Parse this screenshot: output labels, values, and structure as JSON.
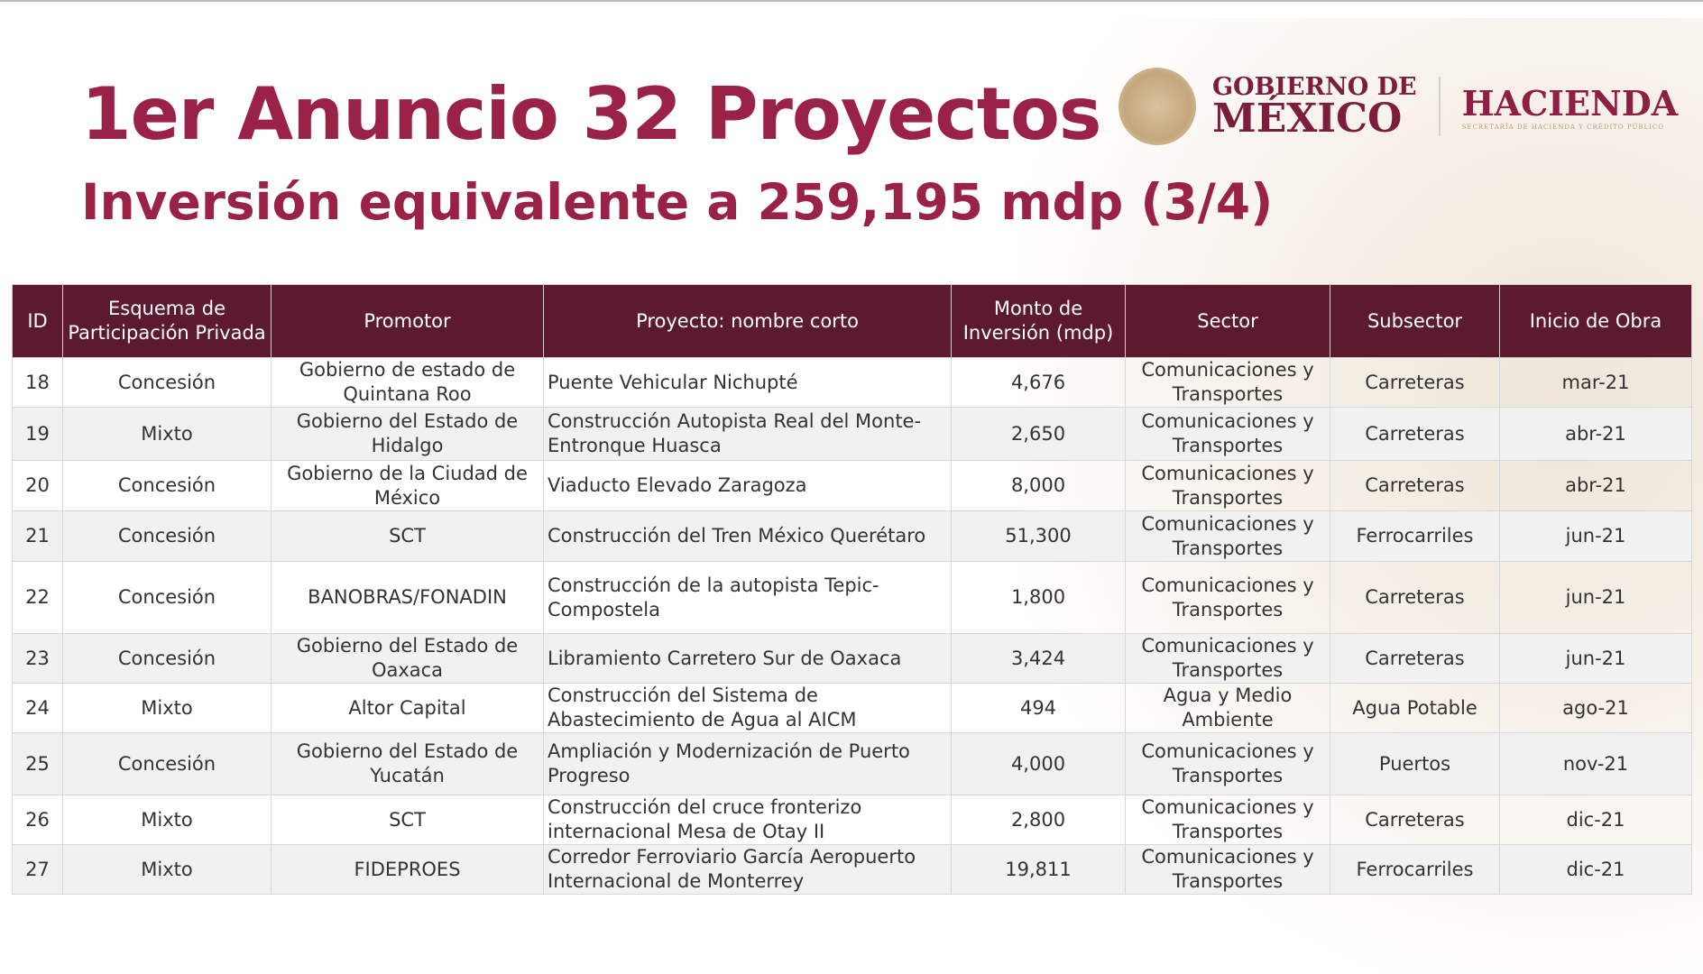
{
  "title": "1er Anuncio 32 Proyectos",
  "subtitle": "Inversión equivalente a 259,195 mdp (3/4)",
  "logo": {
    "gobierno_line1": "GOBIERNO DE",
    "gobierno_line2": "MÉXICO",
    "hacienda": "HACIENDA",
    "hacienda_sub": "SECRETARÍA DE HACIENDA Y CRÉDITO PÚBLICO"
  },
  "colors": {
    "title": "#9b2247",
    "header_bg": "#5c1a2e"
  },
  "table": {
    "headers": [
      "ID",
      "Esquema de Participación Privada",
      "Promotor",
      "Proyecto: nombre corto",
      "Monto de Inversión (mdp)",
      "Sector",
      "Subsector",
      "Inicio de Obra"
    ],
    "rows": [
      [
        "18",
        "Concesión",
        "Gobierno de estado de Quintana Roo",
        "Puente Vehicular Nichupté",
        "4,676",
        "Comunicaciones y Transportes",
        "Carreteras",
        "mar-21"
      ],
      [
        "19",
        "Mixto",
        "Gobierno del Estado de Hidalgo",
        "Construcción Autopista Real del Monte-Entronque Huasca",
        "2,650",
        "Comunicaciones y Transportes",
        "Carreteras",
        "abr-21"
      ],
      [
        "20",
        "Concesión",
        "Gobierno de la Ciudad de México",
        "Viaducto Elevado Zaragoza",
        "8,000",
        "Comunicaciones y Transportes",
        "Carreteras",
        "abr-21"
      ],
      [
        "21",
        "Concesión",
        "SCT",
        "Construcción del Tren México Querétaro",
        "51,300",
        "Comunicaciones y Transportes",
        "Ferrocarriles",
        "jun-21"
      ],
      [
        "22",
        "Concesión",
        "BANOBRAS/FONADIN",
        "Construcción de la autopista Tepic-Compostela",
        "1,800",
        "Comunicaciones y Transportes",
        "Carreteras",
        "jun-21"
      ],
      [
        "23",
        "Concesión",
        "Gobierno del Estado de Oaxaca",
        "Libramiento Carretero Sur de Oaxaca",
        "3,424",
        "Comunicaciones y Transportes",
        "Carreteras",
        "jun-21"
      ],
      [
        "24",
        "Mixto",
        "Altor Capital",
        "Construcción del Sistema de Abastecimiento de Agua al AICM",
        "494",
        "Agua y Medio Ambiente",
        "Agua Potable",
        "ago-21"
      ],
      [
        "25",
        "Concesión",
        "Gobierno del Estado de Yucatán",
        "Ampliación y Modernización de Puerto Progreso",
        "4,000",
        "Comunicaciones y Transportes",
        "Puertos",
        "nov-21"
      ],
      [
        "26",
        "Mixto",
        "SCT",
        "Construcción del cruce fronterizo internacional Mesa de Otay II",
        "2,800",
        "Comunicaciones y Transportes",
        "Carreteras",
        "dic-21"
      ],
      [
        "27",
        "Mixto",
        "FIDEPROES",
        "Corredor Ferroviario García Aeropuerto Internacional de Monterrey",
        "19,811",
        "Comunicaciones y Transportes",
        "Ferrocarriles",
        "dic-21"
      ]
    ]
  }
}
